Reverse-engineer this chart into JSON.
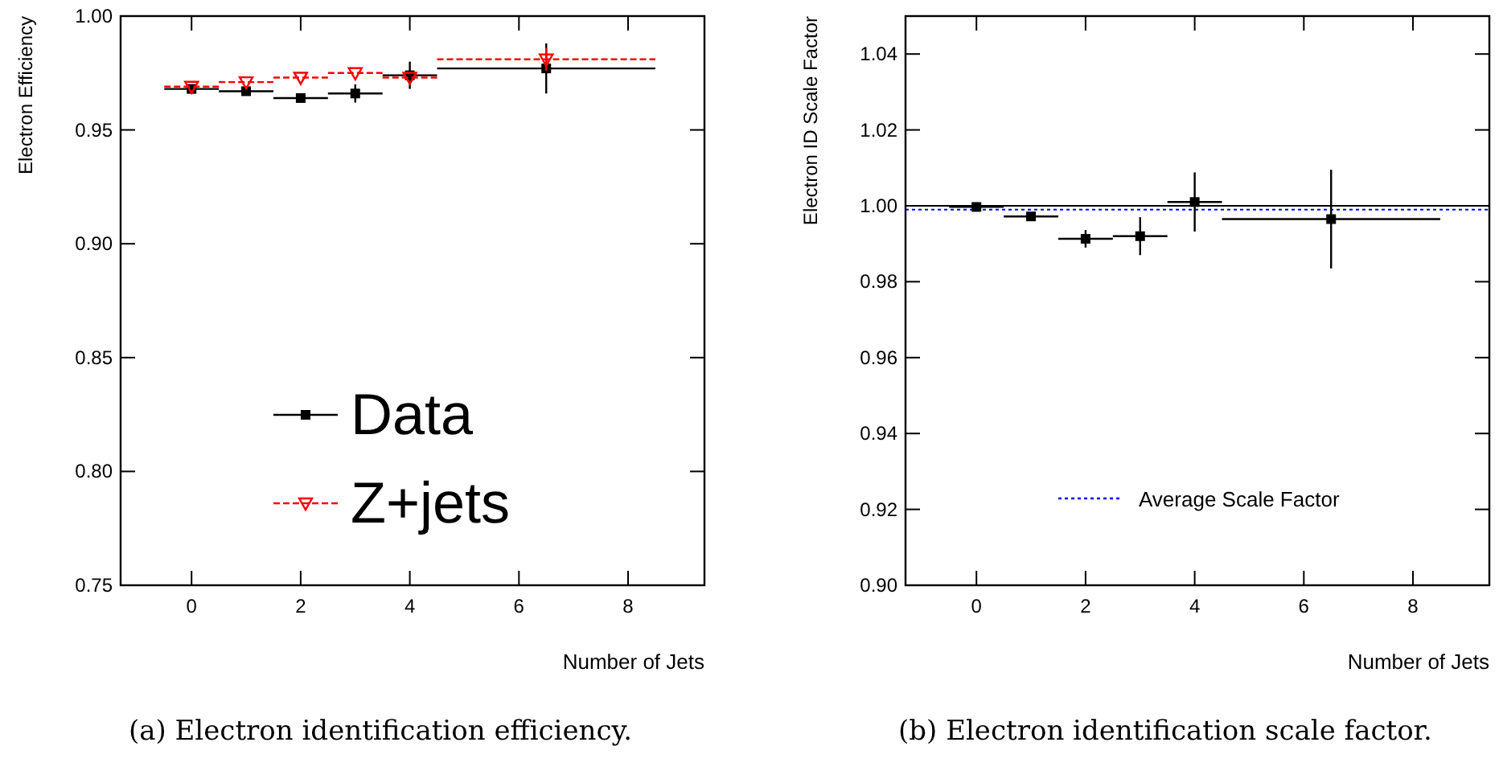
{
  "chart_data": [
    {
      "type": "scatter",
      "xlabel": "Number of Jets",
      "ylabel": "Electron Efficiency",
      "x": [
        0,
        1,
        2,
        3,
        4,
        6.5
      ],
      "xlim": [
        -1.3,
        9.4
      ],
      "xticks": [
        0,
        2,
        4,
        6,
        8
      ],
      "ylim": [
        0.75,
        1.0
      ],
      "yticks": [
        {
          "value": 0.75,
          "label": "0.75"
        },
        {
          "value": 0.8,
          "label": "0.80"
        },
        {
          "value": 0.85,
          "label": "0.85"
        },
        {
          "value": 0.9,
          "label": "0.90"
        },
        {
          "value": 0.95,
          "label": "0.95"
        },
        {
          "value": 1.0,
          "label": "1.00"
        }
      ],
      "legend": "bottom",
      "annotations": [
        "(a) Electron identification efficiency."
      ],
      "series": [
        {
          "name": "Data",
          "color": "#000000",
          "marker": "square",
          "line_style": "solid",
          "values": [
            0.968,
            0.967,
            0.964,
            0.966,
            0.974,
            0.977
          ],
          "errors": [
            null,
            null,
            0.001,
            0.004,
            0.006,
            0.011
          ],
          "xerrors": [
            0.5,
            0.5,
            0.5,
            0.5,
            0.5,
            2
          ]
        },
        {
          "name": "Z+jets",
          "color": "#ff0000",
          "marker": "triangle",
          "line_style": "dashed",
          "values": [
            0.969,
            0.971,
            0.973,
            0.975,
            0.973,
            0.981
          ],
          "errors": [
            null,
            null,
            null,
            null,
            null,
            0.005
          ],
          "xerrors": [
            0.5,
            0.5,
            0.5,
            0.5,
            0.5,
            2
          ]
        }
      ]
    },
    {
      "type": "scatter",
      "xlabel": "Number of Jets",
      "ylabel": "Electron ID Scale Factor",
      "x": [
        0,
        1,
        2,
        3,
        4,
        6.5
      ],
      "xlim": [
        -1.3,
        9.4
      ],
      "xticks": [
        0,
        2,
        4,
        6,
        8
      ],
      "ylim": [
        0.9,
        1.05
      ],
      "yticks": [
        {
          "value": 0.9,
          "label": "0.90"
        },
        {
          "value": 0.92,
          "label": "0.92"
        },
        {
          "value": 0.94,
          "label": "0.94"
        },
        {
          "value": 0.96,
          "label": "0.96"
        },
        {
          "value": 0.98,
          "label": "0.98"
        },
        {
          "value": 1.0,
          "label": "1.00"
        },
        {
          "value": 1.02,
          "label": "1.02"
        },
        {
          "value": 1.04,
          "label": "1.04"
        }
      ],
      "annotations": [
        "(b) Electron identification scale factor."
      ],
      "ref_lines": [
        {
          "axis": "y",
          "value": 1.0,
          "color": "#000000",
          "line_style": "solid"
        },
        {
          "axis": "y",
          "value": 0.999,
          "label": "Average Scale Factor",
          "color": "#0000ff",
          "line_style": "dotted"
        }
      ],
      "series": [
        {
          "color": "#000000",
          "marker": "square",
          "line_style": "solid",
          "values": [
            0.9997,
            0.9972,
            0.9913,
            0.992,
            1.001,
            0.9965
          ],
          "errors": [
            null,
            null,
            0.0023,
            0.005,
            0.0078,
            0.013
          ],
          "xerrors": [
            0.5,
            0.5,
            0.5,
            0.5,
            0.5,
            2
          ]
        }
      ]
    }
  ]
}
